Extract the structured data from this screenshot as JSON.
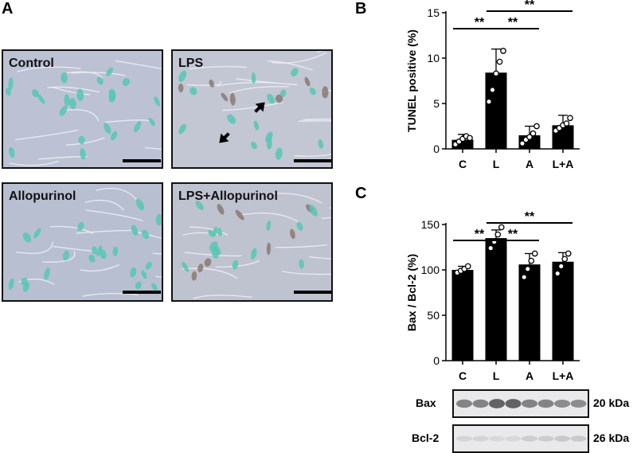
{
  "panel_letters": {
    "a": "A",
    "b": "B",
    "c": "C"
  },
  "micrographs": [
    {
      "label": "Control",
      "arrows": 0,
      "tone": "#bcc2d4"
    },
    {
      "label": "LPS",
      "arrows": 2,
      "tone": "#c3c6d3"
    },
    {
      "label": "Allopurinol",
      "arrows": 0,
      "tone": "#b8bfd1"
    },
    {
      "label": "LPS+Allopurinol",
      "arrows": 0,
      "tone": "#bfc2cf"
    }
  ],
  "colors": {
    "nuclei": "#56c7b4",
    "apoptotic": "#8a7a70",
    "bar": "#000000"
  },
  "chart_data": [
    {
      "type": "bar",
      "categories": [
        "C",
        "L",
        "A",
        "L+A"
      ],
      "values": [
        1.0,
        8.4,
        1.5,
        2.6
      ],
      "errors": [
        0.6,
        2.6,
        1.0,
        1.1
      ],
      "points": [
        [
          0.5,
          0.8,
          1.1,
          1.4,
          1.2
        ],
        [
          5.2,
          6.5,
          8.3,
          9.6,
          10.8
        ],
        [
          0.6,
          1.0,
          1.3,
          1.7,
          2.5
        ],
        [
          2.0,
          2.3,
          2.6,
          2.8,
          3.4
        ]
      ],
      "ylabel": "TUNEL positive (%)",
      "ylim": [
        0,
        15
      ],
      "yticks": [
        0,
        5,
        10,
        15
      ],
      "significance": [
        {
          "from": "C",
          "to": "L",
          "label": "**"
        },
        {
          "from": "L",
          "to": "A",
          "label": "**"
        },
        {
          "from": "L",
          "to": "L+A",
          "label": "**"
        }
      ]
    },
    {
      "type": "bar",
      "categories": [
        "C",
        "L",
        "A",
        "L+A"
      ],
      "values": [
        100,
        135,
        106,
        109
      ],
      "errors": [
        4,
        9,
        12,
        10
      ],
      "points": [
        [
          97,
          99,
          101,
          104
        ],
        [
          124,
          131,
          139,
          147
        ],
        [
          92,
          101,
          110,
          118
        ],
        [
          96,
          104,
          112,
          118
        ]
      ],
      "ylabel": "Bax / Bcl-2 (%)",
      "ylim": [
        0,
        150
      ],
      "yticks": [
        0,
        50,
        100,
        150
      ],
      "significance": [
        {
          "from": "C",
          "to": "L",
          "label": "**"
        },
        {
          "from": "L",
          "to": "A",
          "label": "**"
        },
        {
          "from": "L",
          "to": "L+A",
          "label": "**"
        }
      ]
    }
  ],
  "blots": [
    {
      "label": "Bax",
      "size": "20 kDa",
      "intensity": [
        0.55,
        0.72,
        0.55,
        0.5
      ]
    },
    {
      "label": "Bcl-2",
      "size": "26 kDa",
      "intensity": [
        0.12,
        0.1,
        0.16,
        0.18
      ]
    }
  ]
}
